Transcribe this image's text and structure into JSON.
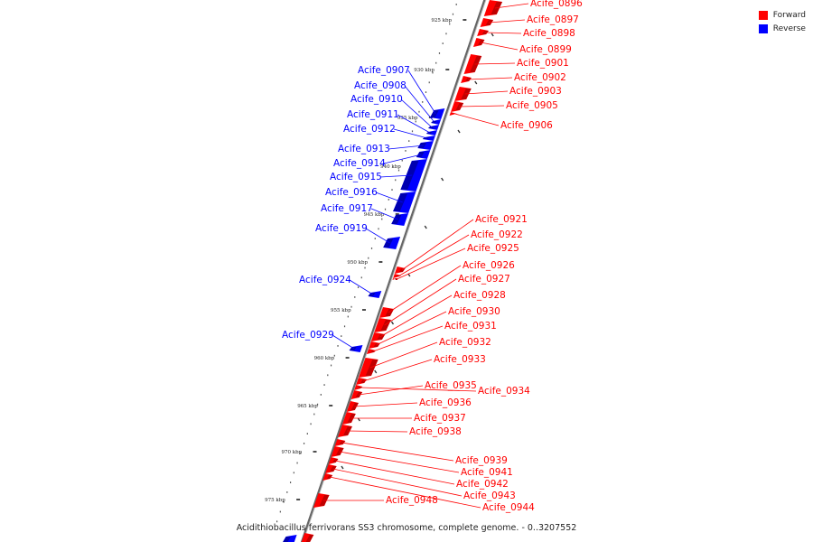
{
  "caption": "Acidithiobacillus ferrivorans SS3 chromosome, complete genome. - 0..3207552",
  "legend": [
    {
      "label": "Forward",
      "color": "#ff0000"
    },
    {
      "label": "Reverse",
      "color": "#0000ff"
    }
  ],
  "colors": {
    "forward": "#ff0000",
    "reverse": "#0000ff",
    "backbone": "#888888",
    "tick": "#222222"
  },
  "ticks": [
    "925 kbp",
    "930 kbp",
    "935 kbp",
    "940 kbp",
    "945 kbp",
    "950 kbp",
    "955 kbp",
    "960 kbp",
    "965 kbp",
    "970 kbp",
    "975 kbp"
  ],
  "forward_genes": [
    "Acife_0896",
    "Acife_0897",
    "Acife_0898",
    "Acife_0899",
    "Acife_0901",
    "Acife_0902",
    "Acife_0903",
    "Acife_0905",
    "Acife_0906",
    "Acife_0921",
    "Acife_0922",
    "Acife_0925",
    "Acife_0926",
    "Acife_0927",
    "Acife_0928",
    "Acife_0930",
    "Acife_0931",
    "Acife_0932",
    "Acife_0933",
    "Acife_0934",
    "Acife_0935",
    "Acife_0936",
    "Acife_0937",
    "Acife_0938",
    "Acife_0939",
    "Acife_0941",
    "Acife_0942",
    "Acife_0943",
    "Acife_0944",
    "Acife_0948"
  ],
  "reverse_genes": [
    "Acife_0907",
    "Acife_0908",
    "Acife_0910",
    "Acife_0911",
    "Acife_0912",
    "Acife_0913",
    "Acife_0914",
    "Acife_0915",
    "Acife_0916",
    "Acife_0917",
    "Acife_0919",
    "Acife_0924",
    "Acife_0929"
  ]
}
